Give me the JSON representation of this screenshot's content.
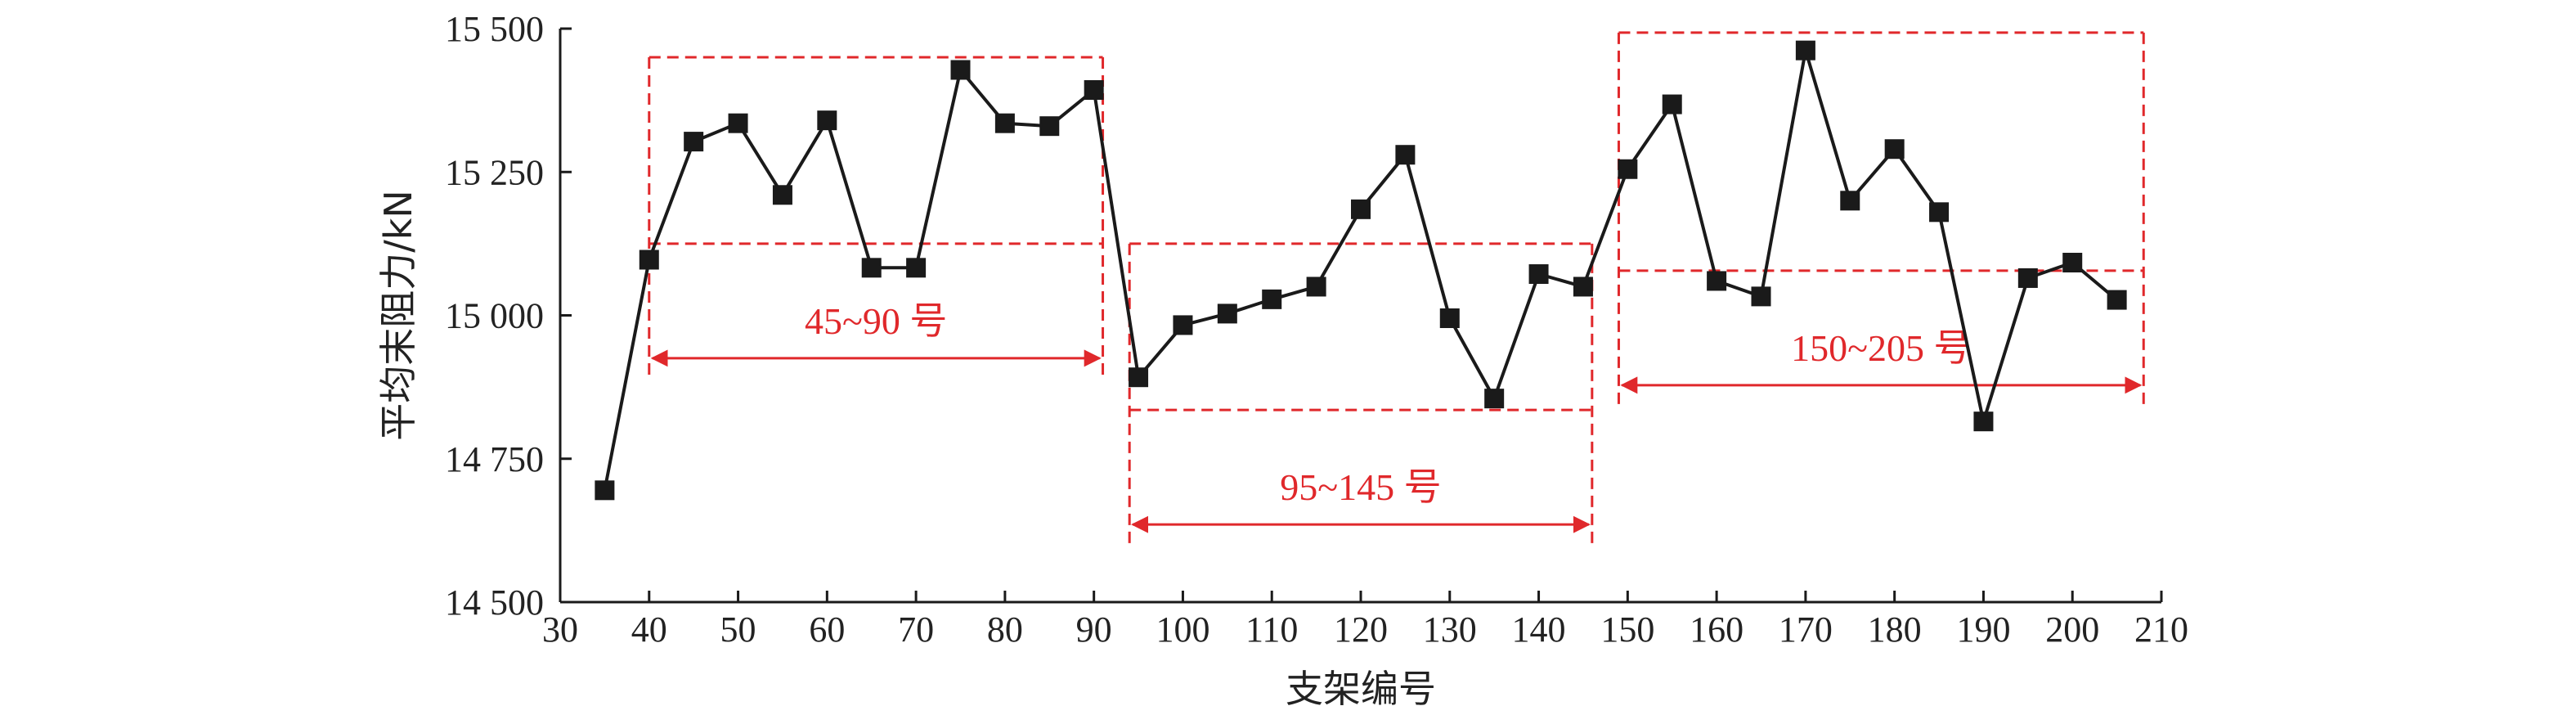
{
  "chart_data": {
    "type": "line",
    "xlabel": "支架编号",
    "ylabel": "平均末阻力/kN",
    "xlim": [
      30,
      210
    ],
    "ylim": [
      14500,
      15500
    ],
    "xticks": [
      30,
      40,
      50,
      60,
      70,
      80,
      90,
      100,
      110,
      120,
      130,
      140,
      150,
      160,
      170,
      180,
      190,
      200,
      210
    ],
    "yticks": [
      14500,
      14750,
      15000,
      15250,
      15500
    ],
    "ytick_labels": [
      "14 500",
      "14 750",
      "15 000",
      "15 250",
      "15 500"
    ],
    "marker": "square",
    "line_color": "#1a1a1a",
    "annotation_color": "#e0282b",
    "series": [
      {
        "x": [
          35,
          40,
          45,
          50,
          55,
          60,
          65,
          70,
          75,
          80,
          85,
          90,
          95,
          100,
          105,
          110,
          115,
          120,
          125,
          130,
          135,
          140,
          145,
          150,
          155,
          160,
          165,
          170,
          175,
          180,
          185,
          190,
          195,
          200,
          205
        ],
        "values": [
          14695,
          15097,
          15303,
          15335,
          15210,
          15340,
          15083,
          15083,
          15428,
          15335,
          15330,
          15393,
          14892,
          14983,
          15003,
          15028,
          15050,
          15185,
          15280,
          14995,
          14855,
          15072,
          15050,
          15255,
          15368,
          15060,
          15033,
          15462,
          15200,
          15290,
          15180,
          14815,
          15065,
          15092,
          15027
        ]
      }
    ],
    "annotations": [
      {
        "label": "45~90 号",
        "x_range": [
          40,
          91
        ],
        "y_range": [
          15125,
          15450
        ]
      },
      {
        "label": "95~145 号",
        "x_range": [
          94,
          146
        ],
        "y_range": [
          14835,
          15125
        ]
      },
      {
        "label": "150~205 号",
        "x_range": [
          149,
          208
        ],
        "y_range": [
          15078,
          15493
        ]
      }
    ]
  }
}
